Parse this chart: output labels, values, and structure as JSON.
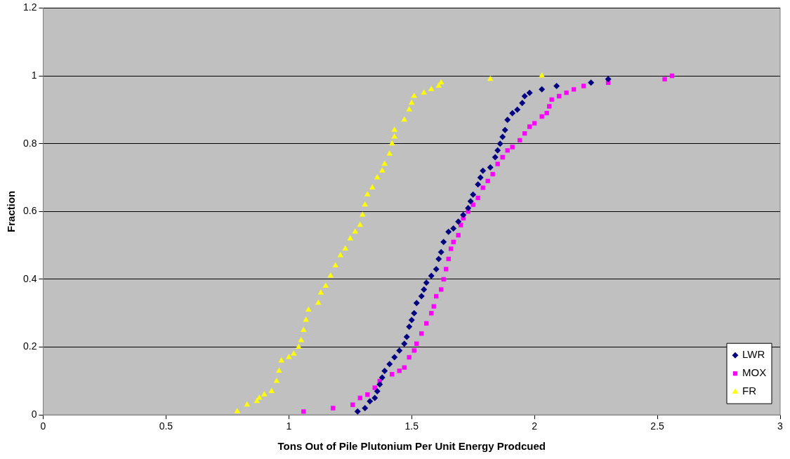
{
  "chart_data": {
    "type": "scatter",
    "xlabel": "Tons Out of Pile Plutonium Per Unit Energy Prodcued",
    "ylabel": "Fraction",
    "xlim": [
      0,
      3
    ],
    "xticks": [
      0,
      0.5,
      1,
      1.5,
      2,
      2.5,
      3
    ],
    "ylim": [
      0,
      1.2
    ],
    "yticks": [
      0,
      0.2,
      0.4,
      0.6,
      0.8,
      1,
      1.2
    ],
    "grid": "y",
    "legend": "bottom right",
    "series": [
      {
        "name": "LWR",
        "color": "#000080",
        "marker": "diamond",
        "x": [
          1.28,
          1.31,
          1.33,
          1.35,
          1.36,
          1.37,
          1.38,
          1.39,
          1.41,
          1.43,
          1.45,
          1.47,
          1.48,
          1.49,
          1.5,
          1.51,
          1.52,
          1.54,
          1.55,
          1.56,
          1.58,
          1.6,
          1.61,
          1.62,
          1.63,
          1.65,
          1.67,
          1.69,
          1.71,
          1.73,
          1.74,
          1.75,
          1.77,
          1.78,
          1.79,
          1.82,
          1.84,
          1.85,
          1.86,
          1.87,
          1.88,
          1.89,
          1.91,
          1.93,
          1.95,
          1.96,
          1.98,
          2.03,
          2.09,
          2.23,
          2.3
        ],
        "values": [
          0.01,
          0.02,
          0.04,
          0.05,
          0.07,
          0.09,
          0.11,
          0.13,
          0.15,
          0.17,
          0.19,
          0.21,
          0.23,
          0.26,
          0.28,
          0.3,
          0.33,
          0.35,
          0.37,
          0.39,
          0.41,
          0.43,
          0.46,
          0.48,
          0.51,
          0.54,
          0.55,
          0.57,
          0.59,
          0.61,
          0.63,
          0.65,
          0.68,
          0.7,
          0.72,
          0.73,
          0.76,
          0.78,
          0.8,
          0.82,
          0.84,
          0.87,
          0.89,
          0.9,
          0.92,
          0.94,
          0.95,
          0.96,
          0.97,
          0.98,
          0.99
        ]
      },
      {
        "name": "MOX",
        "color": "#ff00ff",
        "marker": "square",
        "x": [
          1.06,
          1.18,
          1.26,
          1.29,
          1.32,
          1.35,
          1.37,
          1.42,
          1.45,
          1.47,
          1.49,
          1.51,
          1.52,
          1.54,
          1.56,
          1.58,
          1.59,
          1.6,
          1.62,
          1.63,
          1.64,
          1.65,
          1.66,
          1.67,
          1.69,
          1.7,
          1.71,
          1.73,
          1.75,
          1.77,
          1.79,
          1.81,
          1.83,
          1.85,
          1.87,
          1.89,
          1.91,
          1.94,
          1.96,
          1.98,
          2,
          2.03,
          2.05,
          2.06,
          2.07,
          2.1,
          2.13,
          2.16,
          2.2,
          2.3,
          2.53,
          2.56
        ],
        "values": [
          0.01,
          0.02,
          0.03,
          0.05,
          0.06,
          0.08,
          0.1,
          0.12,
          0.13,
          0.14,
          0.17,
          0.19,
          0.21,
          0.24,
          0.27,
          0.3,
          0.32,
          0.35,
          0.37,
          0.4,
          0.43,
          0.46,
          0.49,
          0.51,
          0.53,
          0.56,
          0.58,
          0.6,
          0.62,
          0.64,
          0.67,
          0.69,
          0.71,
          0.74,
          0.76,
          0.78,
          0.79,
          0.81,
          0.83,
          0.85,
          0.86,
          0.88,
          0.89,
          0.91,
          0.93,
          0.94,
          0.95,
          0.96,
          0.97,
          0.98,
          0.99,
          1
        ]
      },
      {
        "name": "FR",
        "color": "#ffff00",
        "marker": "triangle",
        "x": [
          0.79,
          0.83,
          0.87,
          0.88,
          0.9,
          0.93,
          0.95,
          0.96,
          0.97,
          1,
          1.02,
          1.04,
          1.05,
          1.06,
          1.07,
          1.08,
          1.12,
          1.13,
          1.15,
          1.17,
          1.19,
          1.21,
          1.23,
          1.25,
          1.27,
          1.29,
          1.3,
          1.31,
          1.32,
          1.34,
          1.36,
          1.38,
          1.39,
          1.41,
          1.42,
          1.43,
          1.43,
          1.47,
          1.49,
          1.5,
          1.51,
          1.55,
          1.58,
          1.61,
          1.62,
          1.82,
          2.03
        ],
        "values": [
          0.01,
          0.03,
          0.04,
          0.05,
          0.06,
          0.07,
          0.1,
          0.13,
          0.16,
          0.17,
          0.18,
          0.2,
          0.22,
          0.25,
          0.28,
          0.31,
          0.33,
          0.36,
          0.38,
          0.41,
          0.44,
          0.47,
          0.49,
          0.52,
          0.54,
          0.56,
          0.59,
          0.62,
          0.65,
          0.67,
          0.7,
          0.72,
          0.74,
          0.77,
          0.8,
          0.82,
          0.84,
          0.87,
          0.9,
          0.92,
          0.94,
          0.95,
          0.96,
          0.97,
          0.98,
          0.99,
          1
        ]
      }
    ]
  }
}
